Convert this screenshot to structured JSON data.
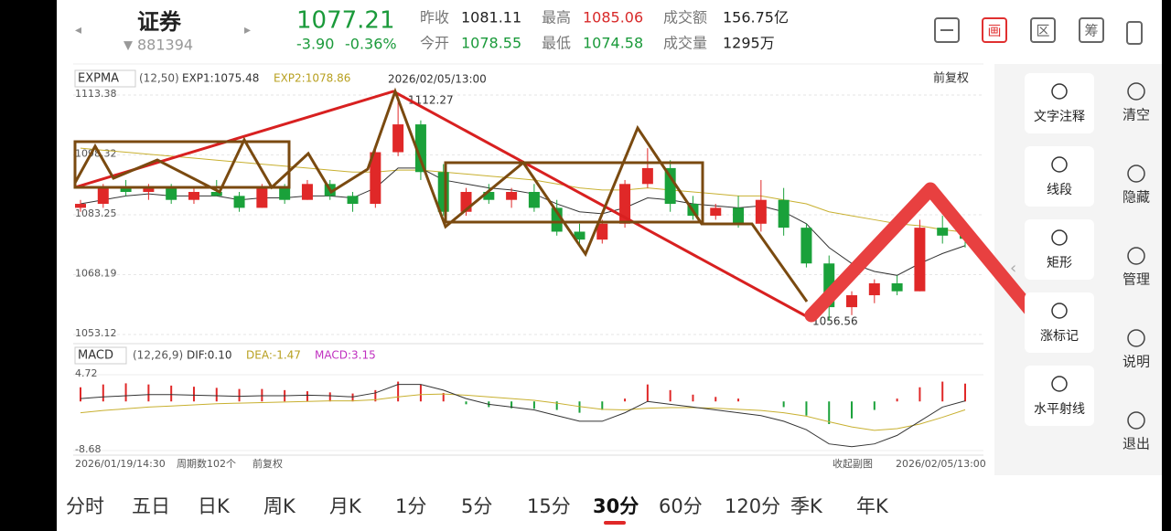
{
  "header": {
    "name": "证券",
    "code": "881394",
    "price": "1077.21",
    "change": "-3.90",
    "change_pct": "-0.36%",
    "stats": [
      {
        "label": "昨收",
        "value": "1081.11"
      },
      {
        "label": "最高",
        "value": "1085.06"
      },
      {
        "label": "成交额",
        "value": "156.75亿"
      },
      {
        "label": "今开",
        "value": "1078.55"
      },
      {
        "label": "最低",
        "value": "1074.58"
      },
      {
        "label": "成交量",
        "value": "1295万"
      }
    ],
    "icons": [
      "画",
      "区",
      "筹"
    ]
  },
  "chart": {
    "indicator": "EXPMA",
    "params": "(12,50)",
    "exp1_label": "EXP1:1075.48",
    "exp2_label": "EXP2:1078.86",
    "cursor_date": "2026/02/05/13:00",
    "adjust": "前复权",
    "ylim": [
      1053.12,
      1113.38
    ],
    "yticks": [
      1053.12,
      1068.19,
      1083.25,
      1098.32,
      1113.38
    ],
    "high_label": "1112.27",
    "low_label": "1056.56",
    "candles": [
      [
        1085,
        1087,
        1084,
        1086
      ],
      [
        1086,
        1091,
        1085,
        1090
      ],
      [
        1090,
        1092,
        1088,
        1089
      ],
      [
        1089,
        1091,
        1087,
        1090
      ],
      [
        1090,
        1091,
        1086,
        1087
      ],
      [
        1087,
        1090,
        1086,
        1089
      ],
      [
        1089,
        1092,
        1088,
        1088
      ],
      [
        1088,
        1089,
        1084,
        1085
      ],
      [
        1085,
        1091,
        1085,
        1090
      ],
      [
        1090,
        1091,
        1086,
        1087
      ],
      [
        1087,
        1092,
        1087,
        1091
      ],
      [
        1091,
        1092,
        1087,
        1088
      ],
      [
        1088,
        1089,
        1084,
        1086
      ],
      [
        1086,
        1100,
        1085,
        1099
      ],
      [
        1099,
        1112.27,
        1098,
        1106
      ],
      [
        1106,
        1107,
        1092,
        1094
      ],
      [
        1094,
        1096,
        1083,
        1084
      ],
      [
        1084,
        1090,
        1083,
        1089
      ],
      [
        1089,
        1091,
        1086,
        1087
      ],
      [
        1087,
        1090,
        1085,
        1089
      ],
      [
        1089,
        1091,
        1084,
        1085
      ],
      [
        1085,
        1087,
        1078,
        1079
      ],
      [
        1079,
        1081,
        1076,
        1077
      ],
      [
        1077,
        1082,
        1076,
        1081
      ],
      [
        1081,
        1092,
        1080,
        1091
      ],
      [
        1091,
        1100,
        1090,
        1095
      ],
      [
        1095,
        1097,
        1084,
        1086
      ],
      [
        1086,
        1088,
        1082,
        1083
      ],
      [
        1083,
        1086,
        1082,
        1085
      ],
      [
        1085,
        1088,
        1080,
        1081
      ],
      [
        1081,
        1092,
        1079,
        1087
      ],
      [
        1087,
        1090,
        1078,
        1080
      ],
      [
        1080,
        1081,
        1070,
        1071
      ],
      [
        1071,
        1073,
        1056.56,
        1060
      ],
      [
        1060,
        1064,
        1058,
        1063
      ],
      [
        1063,
        1067,
        1061,
        1066
      ],
      [
        1066,
        1068,
        1063,
        1064
      ],
      [
        1064,
        1082,
        1064,
        1080
      ],
      [
        1080,
        1083,
        1076,
        1078
      ],
      [
        1078,
        1079,
        1075,
        1077.21
      ]
    ],
    "exp1": [
      1086,
      1087,
      1088,
      1088.5,
      1088,
      1088,
      1088,
      1087,
      1087.5,
      1087.5,
      1088,
      1088,
      1087.5,
      1090,
      1095,
      1095,
      1092,
      1091,
      1090,
      1089.5,
      1088.5,
      1086,
      1084,
      1083.5,
      1085,
      1087.5,
      1087,
      1086,
      1085.5,
      1085,
      1085.5,
      1084,
      1081,
      1075,
      1071,
      1069,
      1068,
      1071,
      1073.5,
      1075.48
    ],
    "exp2": [
      1100,
      1099.5,
      1099,
      1098.5,
      1098,
      1097.5,
      1097,
      1096.5,
      1096,
      1095.5,
      1095,
      1094.5,
      1094,
      1094,
      1094.5,
      1094.5,
      1094,
      1093.5,
      1093,
      1092.5,
      1092,
      1091,
      1090,
      1089.5,
      1089.5,
      1090,
      1089.5,
      1089,
      1088.5,
      1088,
      1088,
      1087,
      1086,
      1084,
      1083,
      1082,
      1081,
      1080.5,
      1079.5,
      1078.86
    ]
  },
  "macd": {
    "indicator": "MACD",
    "params": "(12,26,9)",
    "dif_label": "DIF:0.10",
    "dea_label": "DEA:-1.47",
    "macd_label": "MACD:3.15",
    "ylim": [
      -8.68,
      4.72
    ],
    "yticks": [
      -8.68,
      4.72
    ],
    "bars": [
      2.5,
      3,
      3.2,
      3,
      2.8,
      2.6,
      2.4,
      2.2,
      2.2,
      2,
      1.8,
      1.6,
      1.4,
      2,
      3.5,
      3,
      1.5,
      -0.5,
      -1,
      -1.2,
      -1.3,
      -1.5,
      -2,
      -1.5,
      0.5,
      3,
      2,
      1.2,
      0.8,
      0.5,
      0,
      -1,
      -2.5,
      -4,
      -3,
      -1.5,
      0.5,
      2.5,
      3.5,
      3.15
    ],
    "dif": [
      0.5,
      0.8,
      1,
      1.2,
      1.2,
      1.1,
      1,
      0.9,
      1,
      1,
      1.1,
      1,
      0.8,
      1.5,
      3,
      3,
      2,
      0.5,
      -0.5,
      -1,
      -1.5,
      -2.5,
      -3.5,
      -3.5,
      -2,
      0,
      -0.5,
      -1,
      -1.5,
      -2,
      -2.5,
      -3.5,
      -5,
      -7.5,
      -8,
      -7.5,
      -6,
      -3.5,
      -1,
      0.1
    ],
    "dea": [
      -2,
      -1.6,
      -1.3,
      -1,
      -0.8,
      -0.6,
      -0.4,
      -0.3,
      -0.2,
      -0.1,
      0,
      0.1,
      0.1,
      0.3,
      0.8,
      1.2,
      1.3,
      1.1,
      0.8,
      0.5,
      0.2,
      -0.3,
      -0.9,
      -1.4,
      -1.5,
      -1.2,
      -1.1,
      -1.1,
      -1.2,
      -1.4,
      -1.6,
      -2,
      -2.6,
      -3.6,
      -4.5,
      -5.1,
      -4.8,
      -4,
      -2.8,
      -1.47
    ]
  },
  "footer": {
    "start_date": "2026/01/19/14:30",
    "periods": "周期数102个",
    "adjust": "前复权",
    "collapse": "收起副图",
    "end_date": "2026/02/05/13:00"
  },
  "tools": [
    "文字注释",
    "线段",
    "矩形",
    "涨标记",
    "水平射线"
  ],
  "side": [
    "清空",
    "隐藏",
    "管理",
    "说明",
    "退出"
  ],
  "tabs": [
    "分时",
    "五日",
    "日K",
    "周K",
    "月K",
    "1分",
    "5分",
    "15分",
    "30分",
    "60分",
    "120分",
    "季K",
    "年K"
  ],
  "selected_tab": 8
}
